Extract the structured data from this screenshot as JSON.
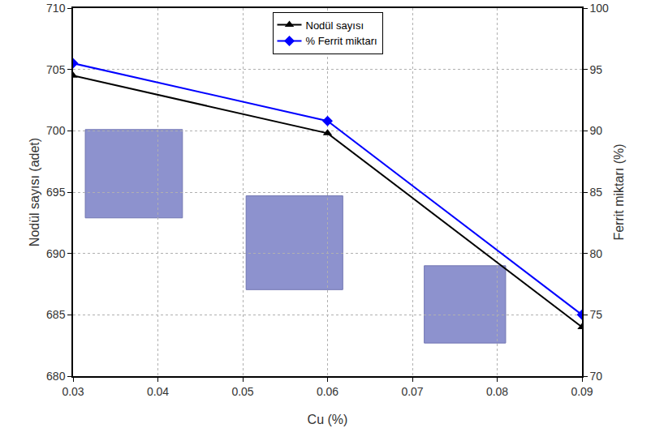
{
  "chart_data": {
    "type": "line",
    "x_label": "Cu (%)",
    "y_label": "Nodül sayısı (adet)",
    "y2_label": "Ferrit miktarı (%)",
    "x": [
      0.03,
      0.06,
      0.09
    ],
    "series": [
      {
        "name": "Nodül sayısı",
        "color": "#000000",
        "marker": "triangle-up",
        "values": [
          704.5,
          699.8,
          684
        ]
      },
      {
        "name": "% Ferrit miktarı",
        "color": "#0000ff",
        "marker": "diamond",
        "axis": "y2",
        "values": [
          95.5,
          90.8,
          75
        ]
      }
    ],
    "xlim": [
      0.03,
      0.09
    ],
    "xticks": [
      0.03,
      0.04,
      0.05,
      0.06,
      0.07,
      0.08,
      0.09
    ],
    "ylim": [
      680,
      710
    ],
    "yticks": [
      680,
      685,
      690,
      695,
      700,
      705,
      710
    ],
    "y2lim": [
      70,
      100
    ],
    "y2ticks": [
      70,
      75,
      80,
      85,
      90,
      95,
      100
    ],
    "grid": true,
    "legend": "upper center"
  }
}
